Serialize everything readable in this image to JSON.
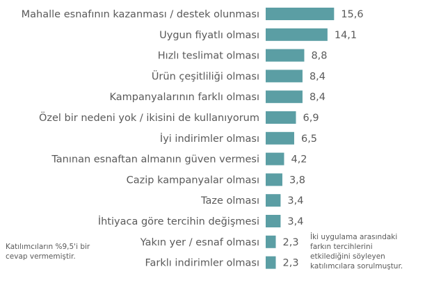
{
  "chart_data": {
    "type": "bar",
    "orientation": "horizontal",
    "categories": [
      "Mahalle esnafının kazanması / destek olunması",
      "Uygun fiyatlı olması",
      "Hızlı teslimat olması",
      "Ürün çeşitliliği olması",
      "Kampanyalarının farklı olması",
      "Özel bir nedeni yok / ikisini de kullanıyorum",
      "İyi indirimler olması",
      "Tanınan esnaftan almanın güven vermesi",
      "Cazip kampanyalar olması",
      "Taze olması",
      "İhtiyaca göre tercihin değişmesi",
      "Yakın yer / esnaf  olması",
      "Farklı indirimler olması"
    ],
    "values": [
      15.6,
      14.1,
      8.8,
      8.4,
      8.4,
      6.9,
      6.5,
      4.2,
      3.8,
      3.4,
      3.4,
      2.3,
      2.3
    ],
    "value_labels": [
      "15,6",
      "14,1",
      "8,8",
      "8,4",
      "8,4",
      "6,9",
      "6,5",
      "4,2",
      "3,8",
      "3,4",
      "3,4",
      "2,3",
      "2,3"
    ],
    "xlim": [
      0,
      16.5
    ],
    "grid": false,
    "legend": "none",
    "bar_color": "#5b9ea4"
  },
  "notes": {
    "left": "Katılımcıların %9,5'i bir\ncevap vermemiştir.",
    "right": "İki uygulama arasındaki\nfarkın tercihlerini\netkilediğini söyleyen\nkatılımcılara sorulmuştur."
  }
}
